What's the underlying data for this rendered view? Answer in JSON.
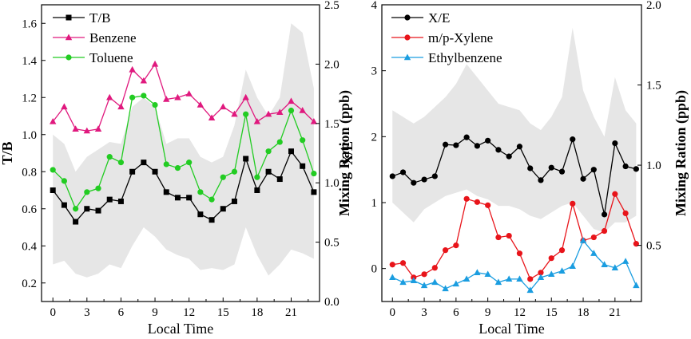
{
  "chart_data": [
    {
      "type": "line",
      "x": [
        0,
        1,
        2,
        3,
        4,
        5,
        6,
        7,
        8,
        9,
        10,
        11,
        12,
        13,
        14,
        15,
        16,
        17,
        18,
        19,
        20,
        21,
        22,
        23
      ],
      "xlabel": "Local Time",
      "xticks": [
        0,
        3,
        6,
        9,
        12,
        15,
        18,
        21
      ],
      "xlim": [
        -1,
        23.5
      ],
      "ylabel_left": "T/B",
      "ylabel_right": "Mixing Ration (ppb)",
      "ylim_left": [
        0.1,
        1.7
      ],
      "yticks_left": [
        "0.2",
        "0.4",
        "0.6",
        "0.8",
        "1.0",
        "1.2",
        "1.4",
        "1.6"
      ],
      "ylim_right": [
        0.0,
        2.5
      ],
      "yticks_right": [
        "0.0",
        "0.5",
        "1.0",
        "1.5",
        "2.0",
        "2.5"
      ],
      "band_axis": "left",
      "band_x": [
        0,
        1,
        2,
        3,
        4,
        5,
        6,
        7,
        8,
        9,
        10,
        11,
        12,
        13,
        14,
        15,
        16,
        17,
        18,
        19,
        20,
        21,
        22,
        23
      ],
      "band_upper": [
        1.0,
        0.95,
        0.8,
        0.88,
        0.92,
        0.96,
        0.95,
        1.15,
        1.2,
        1.15,
        0.95,
        0.98,
        0.98,
        0.88,
        0.85,
        0.88,
        1.05,
        1.35,
        1.2,
        1.1,
        1.2,
        1.6,
        1.55,
        1.25
      ],
      "band_lower": [
        0.3,
        0.32,
        0.25,
        0.23,
        0.25,
        0.3,
        0.28,
        0.4,
        0.5,
        0.45,
        0.38,
        0.35,
        0.33,
        0.27,
        0.28,
        0.27,
        0.3,
        0.5,
        0.35,
        0.24,
        0.3,
        0.38,
        0.36,
        0.33
      ],
      "series": [
        {
          "name": "T/B",
          "axis": "left",
          "color": "#000000",
          "marker": "square",
          "values": [
            0.7,
            0.62,
            0.53,
            0.6,
            0.59,
            0.65,
            0.64,
            0.8,
            0.85,
            0.8,
            0.69,
            0.66,
            0.66,
            0.57,
            0.54,
            0.6,
            0.64,
            0.87,
            0.7,
            0.8,
            0.76,
            0.91,
            0.83,
            0.69
          ]
        },
        {
          "name": "Benzene",
          "axis": "left",
          "color": "#e0197e",
          "marker": "triangle",
          "values": [
            1.07,
            1.15,
            1.03,
            1.02,
            1.03,
            1.2,
            1.15,
            1.35,
            1.29,
            1.38,
            1.19,
            1.2,
            1.22,
            1.16,
            1.09,
            1.15,
            1.11,
            1.2,
            1.07,
            1.11,
            1.12,
            1.18,
            1.13,
            1.07
          ]
        },
        {
          "name": "Toluene",
          "axis": "left",
          "color": "#22cc22",
          "marker": "circle",
          "values": [
            0.81,
            0.75,
            0.6,
            0.69,
            0.71,
            0.88,
            0.85,
            1.2,
            1.21,
            1.16,
            0.84,
            0.82,
            0.85,
            0.69,
            0.65,
            0.77,
            0.8,
            1.11,
            0.77,
            0.91,
            0.96,
            1.13,
            0.97,
            0.79
          ]
        }
      ]
    },
    {
      "type": "line",
      "x": [
        0,
        1,
        2,
        3,
        4,
        5,
        6,
        7,
        8,
        9,
        10,
        11,
        12,
        13,
        14,
        15,
        16,
        17,
        18,
        19,
        20,
        21,
        22,
        23
      ],
      "xlabel": "Local Time",
      "xticks": [
        0,
        3,
        6,
        9,
        12,
        15,
        18,
        21
      ],
      "xlim": [
        -1,
        23.5
      ],
      "ylabel_left": "X/E",
      "ylabel_right": "Mixing Ration (ppb)",
      "ylim_left": [
        -0.5,
        4.0
      ],
      "yticks_left": [
        "0",
        "1",
        "2",
        "3",
        "4"
      ],
      "ylim_right": [
        0.15,
        2.0
      ],
      "yticks_right": [
        "0.5",
        "1.0",
        "1.5",
        "2.0"
      ],
      "band_axis": "left",
      "band_x": [
        0,
        1,
        2,
        3,
        4,
        5,
        6,
        7,
        8,
        9,
        10,
        11,
        12,
        13,
        14,
        15,
        16,
        17,
        18,
        19,
        20,
        21,
        22,
        23
      ],
      "band_upper": [
        2.4,
        2.3,
        2.2,
        2.3,
        2.45,
        2.6,
        2.8,
        3.1,
        2.9,
        2.7,
        2.5,
        2.45,
        2.4,
        2.2,
        2.1,
        2.3,
        2.6,
        3.65,
        2.7,
        2.3,
        2.0,
        2.9,
        2.4,
        2.2
      ],
      "band_lower": [
        1.0,
        0.85,
        0.7,
        0.9,
        1.0,
        1.1,
        1.15,
        1.2,
        1.1,
        1.05,
        0.95,
        0.95,
        0.9,
        0.8,
        0.75,
        0.85,
        0.95,
        1.0,
        0.8,
        0.6,
        0.55,
        0.7,
        0.7,
        0.8
      ],
      "series": [
        {
          "name": "X/E",
          "axis": "left",
          "color": "#000000",
          "marker": "circle",
          "values": [
            1.4,
            1.46,
            1.3,
            1.35,
            1.4,
            1.88,
            1.87,
            1.99,
            1.86,
            1.94,
            1.8,
            1.7,
            1.85,
            1.52,
            1.34,
            1.53,
            1.47,
            1.96,
            1.36,
            1.5,
            0.82,
            1.9,
            1.55,
            1.51
          ]
        },
        {
          "name": "m/p-Xylene",
          "axis": "right",
          "color": "#e8141a",
          "marker": "circle",
          "values": [
            0.38,
            0.39,
            0.3,
            0.32,
            0.36,
            0.47,
            0.5,
            0.79,
            0.77,
            0.75,
            0.55,
            0.56,
            0.45,
            0.29,
            0.33,
            0.42,
            0.47,
            0.76,
            0.53,
            0.55,
            0.59,
            0.82,
            0.7,
            0.51
          ]
        },
        {
          "name": "Ethylbenzene",
          "axis": "right",
          "color": "#1a9de0",
          "marker": "triangle",
          "values": [
            0.3,
            0.27,
            0.28,
            0.25,
            0.27,
            0.23,
            0.26,
            0.29,
            0.33,
            0.32,
            0.27,
            0.29,
            0.29,
            0.22,
            0.3,
            0.32,
            0.34,
            0.37,
            0.53,
            0.45,
            0.38,
            0.36,
            0.4,
            0.25
          ]
        }
      ]
    }
  ]
}
